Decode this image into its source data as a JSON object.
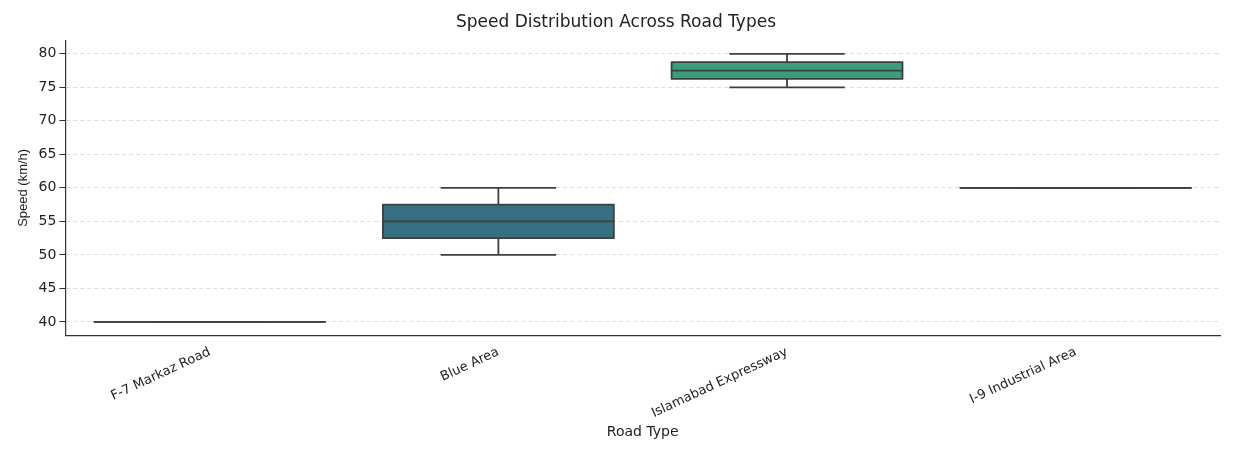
{
  "chart_data": {
    "type": "box",
    "title": "Speed Distribution Across Road Types",
    "xlabel": "Road Type",
    "ylabel": "Speed (km/h)",
    "categories": [
      "F-7 Markaz Road",
      "Blue Area",
      "Islamabad Expressway",
      "I-9 Industrial Area"
    ],
    "colors": [
      "#3f3f3f",
      "#366f82",
      "#35a07b",
      "#3f3f3f"
    ],
    "boxes": [
      {
        "low": 40,
        "q1": 40,
        "median": 40,
        "q3": 40,
        "high": 40
      },
      {
        "low": 50,
        "q1": 52.5,
        "median": 55,
        "q3": 57.5,
        "high": 60
      },
      {
        "low": 75,
        "q1": 76.25,
        "median": 77.5,
        "q3": 78.75,
        "high": 80
      },
      {
        "low": 60,
        "q1": 60,
        "median": 60,
        "q3": 60,
        "high": 60
      }
    ],
    "ylim": [
      38,
      82
    ],
    "yticks": [
      40,
      45,
      50,
      55,
      60,
      65,
      70,
      75,
      80
    ],
    "grid": "y",
    "legend": false
  }
}
